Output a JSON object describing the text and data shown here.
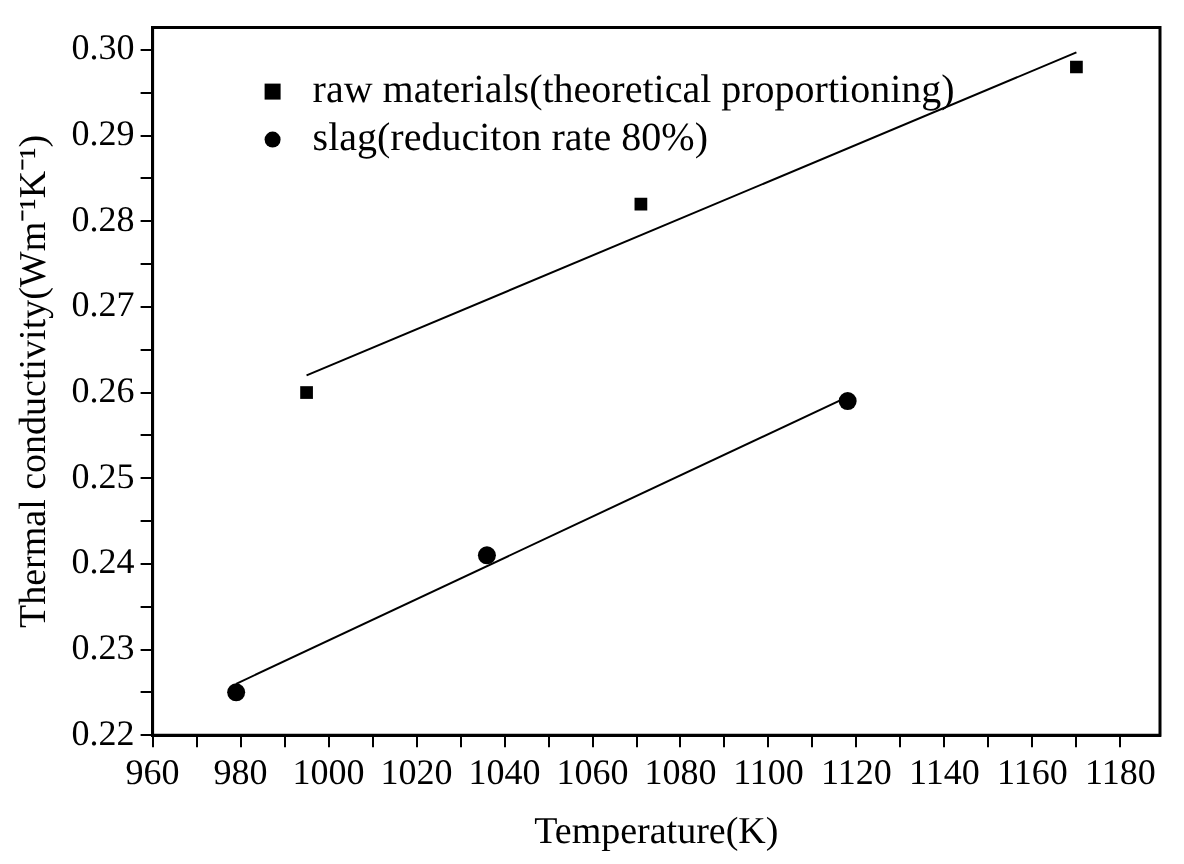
{
  "chart_data": {
    "type": "scatter",
    "xlabel": "Temperature(K)",
    "ylabel": "Thermal conductivity(Wm⁻¹K⁻¹)",
    "xlim": [
      960,
      1189
    ],
    "ylim": [
      0.22,
      0.3026
    ],
    "xticks": [
      960,
      {
        "value": 970,
        "label": null
      },
      980,
      {
        "value": 990,
        "label": null
      },
      1000,
      {
        "value": 1010,
        "label": null
      },
      1020,
      {
        "value": 1030,
        "label": null
      },
      1040,
      {
        "value": 1050,
        "label": null
      },
      1060,
      {
        "value": 1070,
        "label": null
      },
      1080,
      {
        "value": 1090,
        "label": null
      },
      1100,
      {
        "value": 1110,
        "label": null
      },
      1120,
      {
        "value": 1130,
        "label": null
      },
      1140,
      {
        "value": 1150,
        "label": null
      },
      1160,
      {
        "value": 1170,
        "label": null
      },
      1180
    ],
    "yticks": [
      0.22,
      {
        "value": 0.225,
        "label": null
      },
      0.23,
      {
        "value": 0.235,
        "label": null
      },
      0.24,
      {
        "value": 0.245,
        "label": null
      },
      0.25,
      {
        "value": 0.255,
        "label": null
      },
      0.26,
      {
        "value": 0.265,
        "label": null
      },
      0.27,
      {
        "value": 0.275,
        "label": null
      },
      0.28,
      {
        "value": 0.285,
        "label": null
      },
      0.29,
      {
        "value": 0.295,
        "label": null
      },
      {
        "value": 0.3,
        "label": "0.30"
      }
    ],
    "grid": false,
    "legend": "top left",
    "series": [
      {
        "name": "raw materials(theoretical proportioning)",
        "color": "#000000",
        "marker": "square",
        "x": [
          995,
          1071,
          1170
        ],
        "values": [
          0.26,
          0.282,
          0.298
        ]
      },
      {
        "name": "slag(reduciton rate 80%)",
        "color": "#000000",
        "marker": "circle",
        "x": [
          979,
          1036,
          1118
        ],
        "values": [
          0.225,
          0.241,
          0.259
        ]
      },
      {
        "type": "line",
        "color": "#000000",
        "marker": "none",
        "x": [
          995,
          1170
        ],
        "values": [
          0.262,
          0.2997
        ]
      },
      {
        "type": "line",
        "color": "#000000",
        "marker": "none",
        "x": [
          979,
          1118
        ],
        "values": [
          0.226,
          0.2595
        ]
      }
    ]
  }
}
